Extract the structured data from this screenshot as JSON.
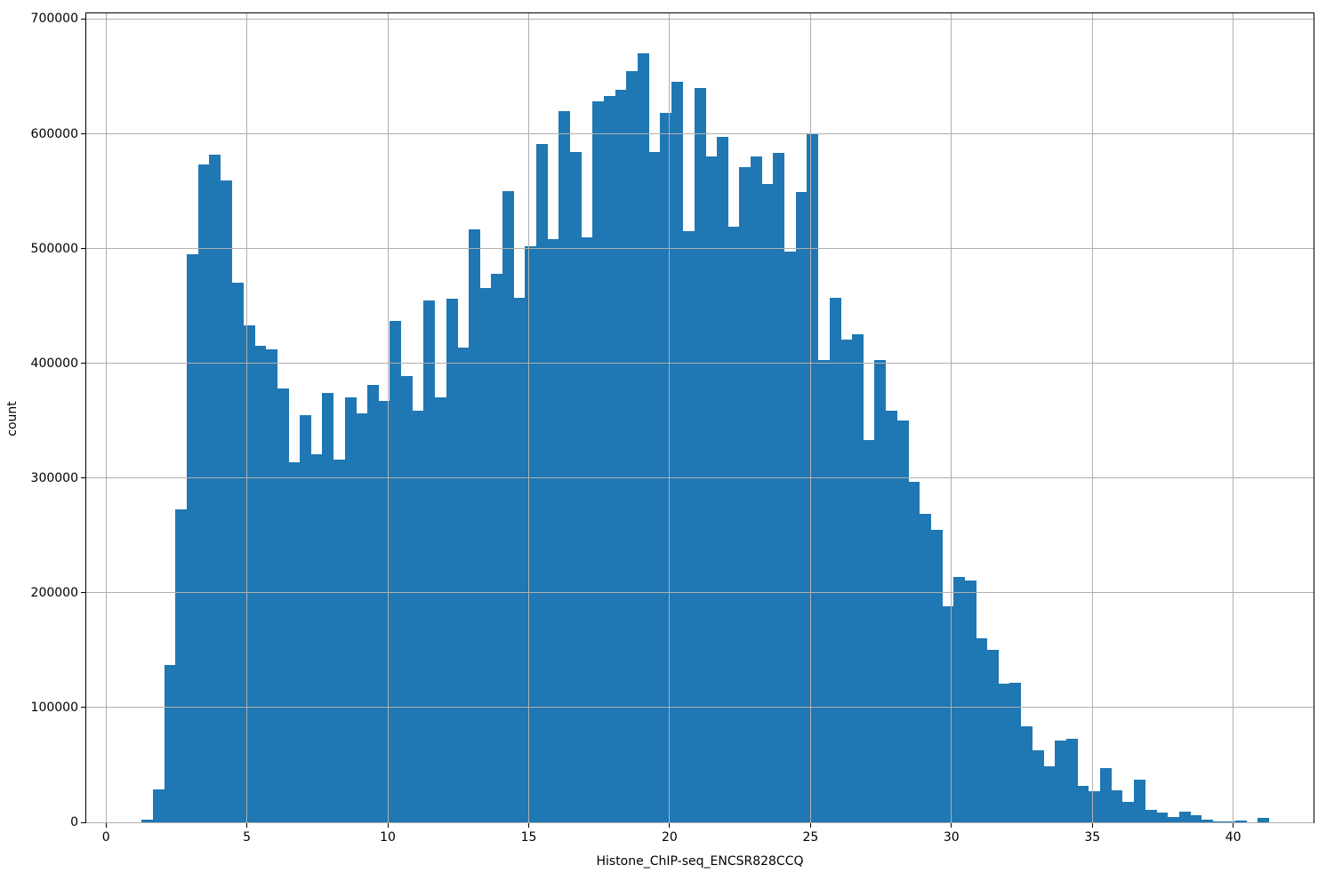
{
  "figure": {
    "background": "#ffffff",
    "bar_color": "#1f77b4",
    "grid_color": "#b0b0b0",
    "spine_color": "#000000",
    "text_color": "#000000"
  },
  "chart_data": {
    "type": "bar",
    "subtype": "histogram",
    "title": "",
    "xlabel": "Histone_ChIP-seq_ENCSR828CCQ",
    "ylabel": "count",
    "xlim": [
      -0.7,
      42.85
    ],
    "ylim": [
      0,
      705000
    ],
    "x_ticks": [
      0,
      5,
      10,
      15,
      20,
      25,
      30,
      35,
      40
    ],
    "y_ticks": [
      0,
      100000,
      200000,
      300000,
      400000,
      500000,
      600000,
      700000
    ],
    "grid": true,
    "grid_above_bars": true,
    "legend": false,
    "bin_start": 1.27,
    "bin_width": 0.4,
    "counts": [
      2500,
      29000,
      137000,
      273000,
      495000,
      573000,
      582000,
      559000,
      470000,
      433000,
      415000,
      412000,
      378000,
      314000,
      355000,
      321000,
      374000,
      316000,
      370000,
      356000,
      381000,
      367000,
      437000,
      389000,
      359000,
      455000,
      370000,
      456000,
      414000,
      517000,
      466000,
      478000,
      550000,
      457000,
      502000,
      591000,
      508000,
      620000,
      584000,
      510000,
      628000,
      633000,
      638000,
      655000,
      670000,
      584000,
      618000,
      645000,
      515000,
      640000,
      580000,
      597000,
      519000,
      571000,
      580000,
      556000,
      583000,
      497000,
      549000,
      600000,
      403000,
      457000,
      421000,
      425000,
      333000,
      403000,
      359000,
      350000,
      297000,
      269000,
      255000,
      188000,
      214000,
      211000,
      160000,
      150000,
      121000,
      122000,
      84000,
      63000,
      49000,
      71000,
      73000,
      32000,
      27000,
      47000,
      28000,
      18000,
      37000,
      11000,
      8500,
      4500,
      9000,
      6500,
      2300,
      1000,
      400,
      1800,
      300,
      3500
    ]
  }
}
